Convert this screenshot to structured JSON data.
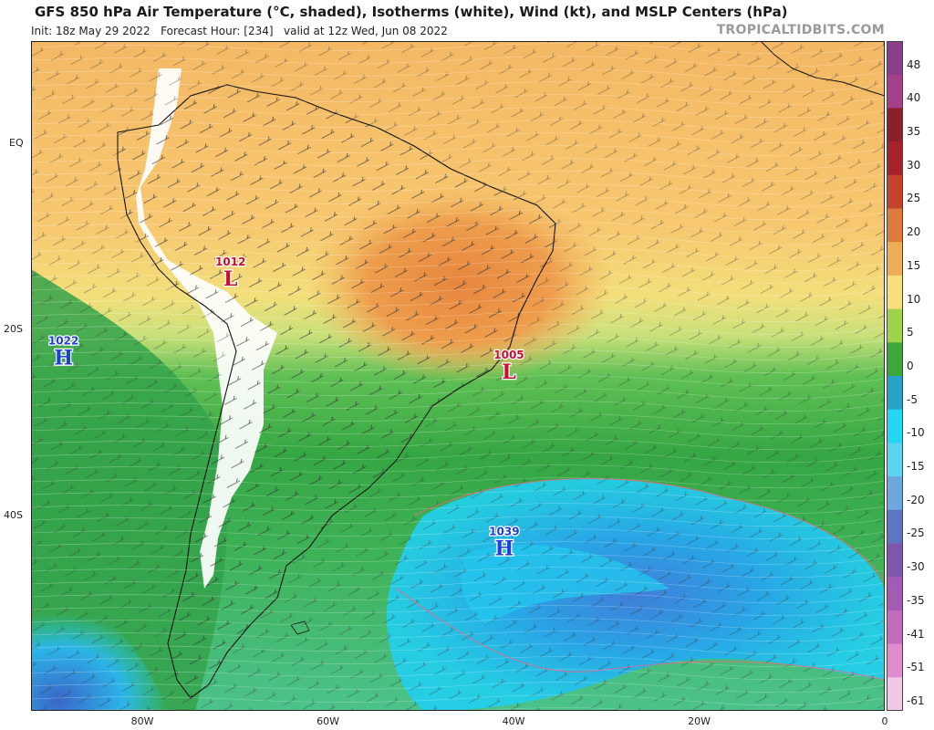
{
  "header": {
    "title": "GFS 850 hPa Air Temperature (°C, shaded), Isotherms (white), Wind (kt), and MSLP Centers (hPa)",
    "init": "Init: 18z May 29 2022",
    "forecast_hour": "Forecast Hour: [234]",
    "valid": "valid at 12z Wed, Jun 08 2022",
    "brand": "TROPICALTIDBITS.COM"
  },
  "axes": {
    "lat_labels": [
      "EQ",
      "20S",
      "40S"
    ],
    "lon_labels": [
      "80W",
      "60W",
      "40W",
      "20W",
      "0"
    ]
  },
  "colorbar": {
    "labels": [
      "48",
      "40",
      "35",
      "30",
      "25",
      "20",
      "15",
      "10",
      "5",
      "0",
      "-5",
      "-10",
      "-15",
      "-20",
      "-25",
      "-30",
      "-35",
      "-41",
      "-51",
      "-61"
    ],
    "colors": [
      "#8a3d8a",
      "#a4408a",
      "#8b1f2a",
      "#a6222b",
      "#c4432d",
      "#de7a3b",
      "#efae56",
      "#f7df7a",
      "#9fd34a",
      "#3aa83a",
      "#25a3c8",
      "#22d6f5",
      "#5dd3f2",
      "#6ea6df",
      "#5d76c4",
      "#7e56b0",
      "#a35bb6",
      "#c36cbd",
      "#e08dd0",
      "#f0c8e8"
    ]
  },
  "pressure_centers": [
    {
      "type": "H",
      "value": "1022",
      "lat": -23,
      "lon": -88.5
    },
    {
      "type": "L",
      "value": "1012",
      "lat": -14.5,
      "lon": -70.5
    },
    {
      "type": "L",
      "value": "1005",
      "lat": -24.5,
      "lon": -40.5
    },
    {
      "type": "H",
      "value": "1039",
      "lat": -43.5,
      "lon": -41
    }
  ]
}
